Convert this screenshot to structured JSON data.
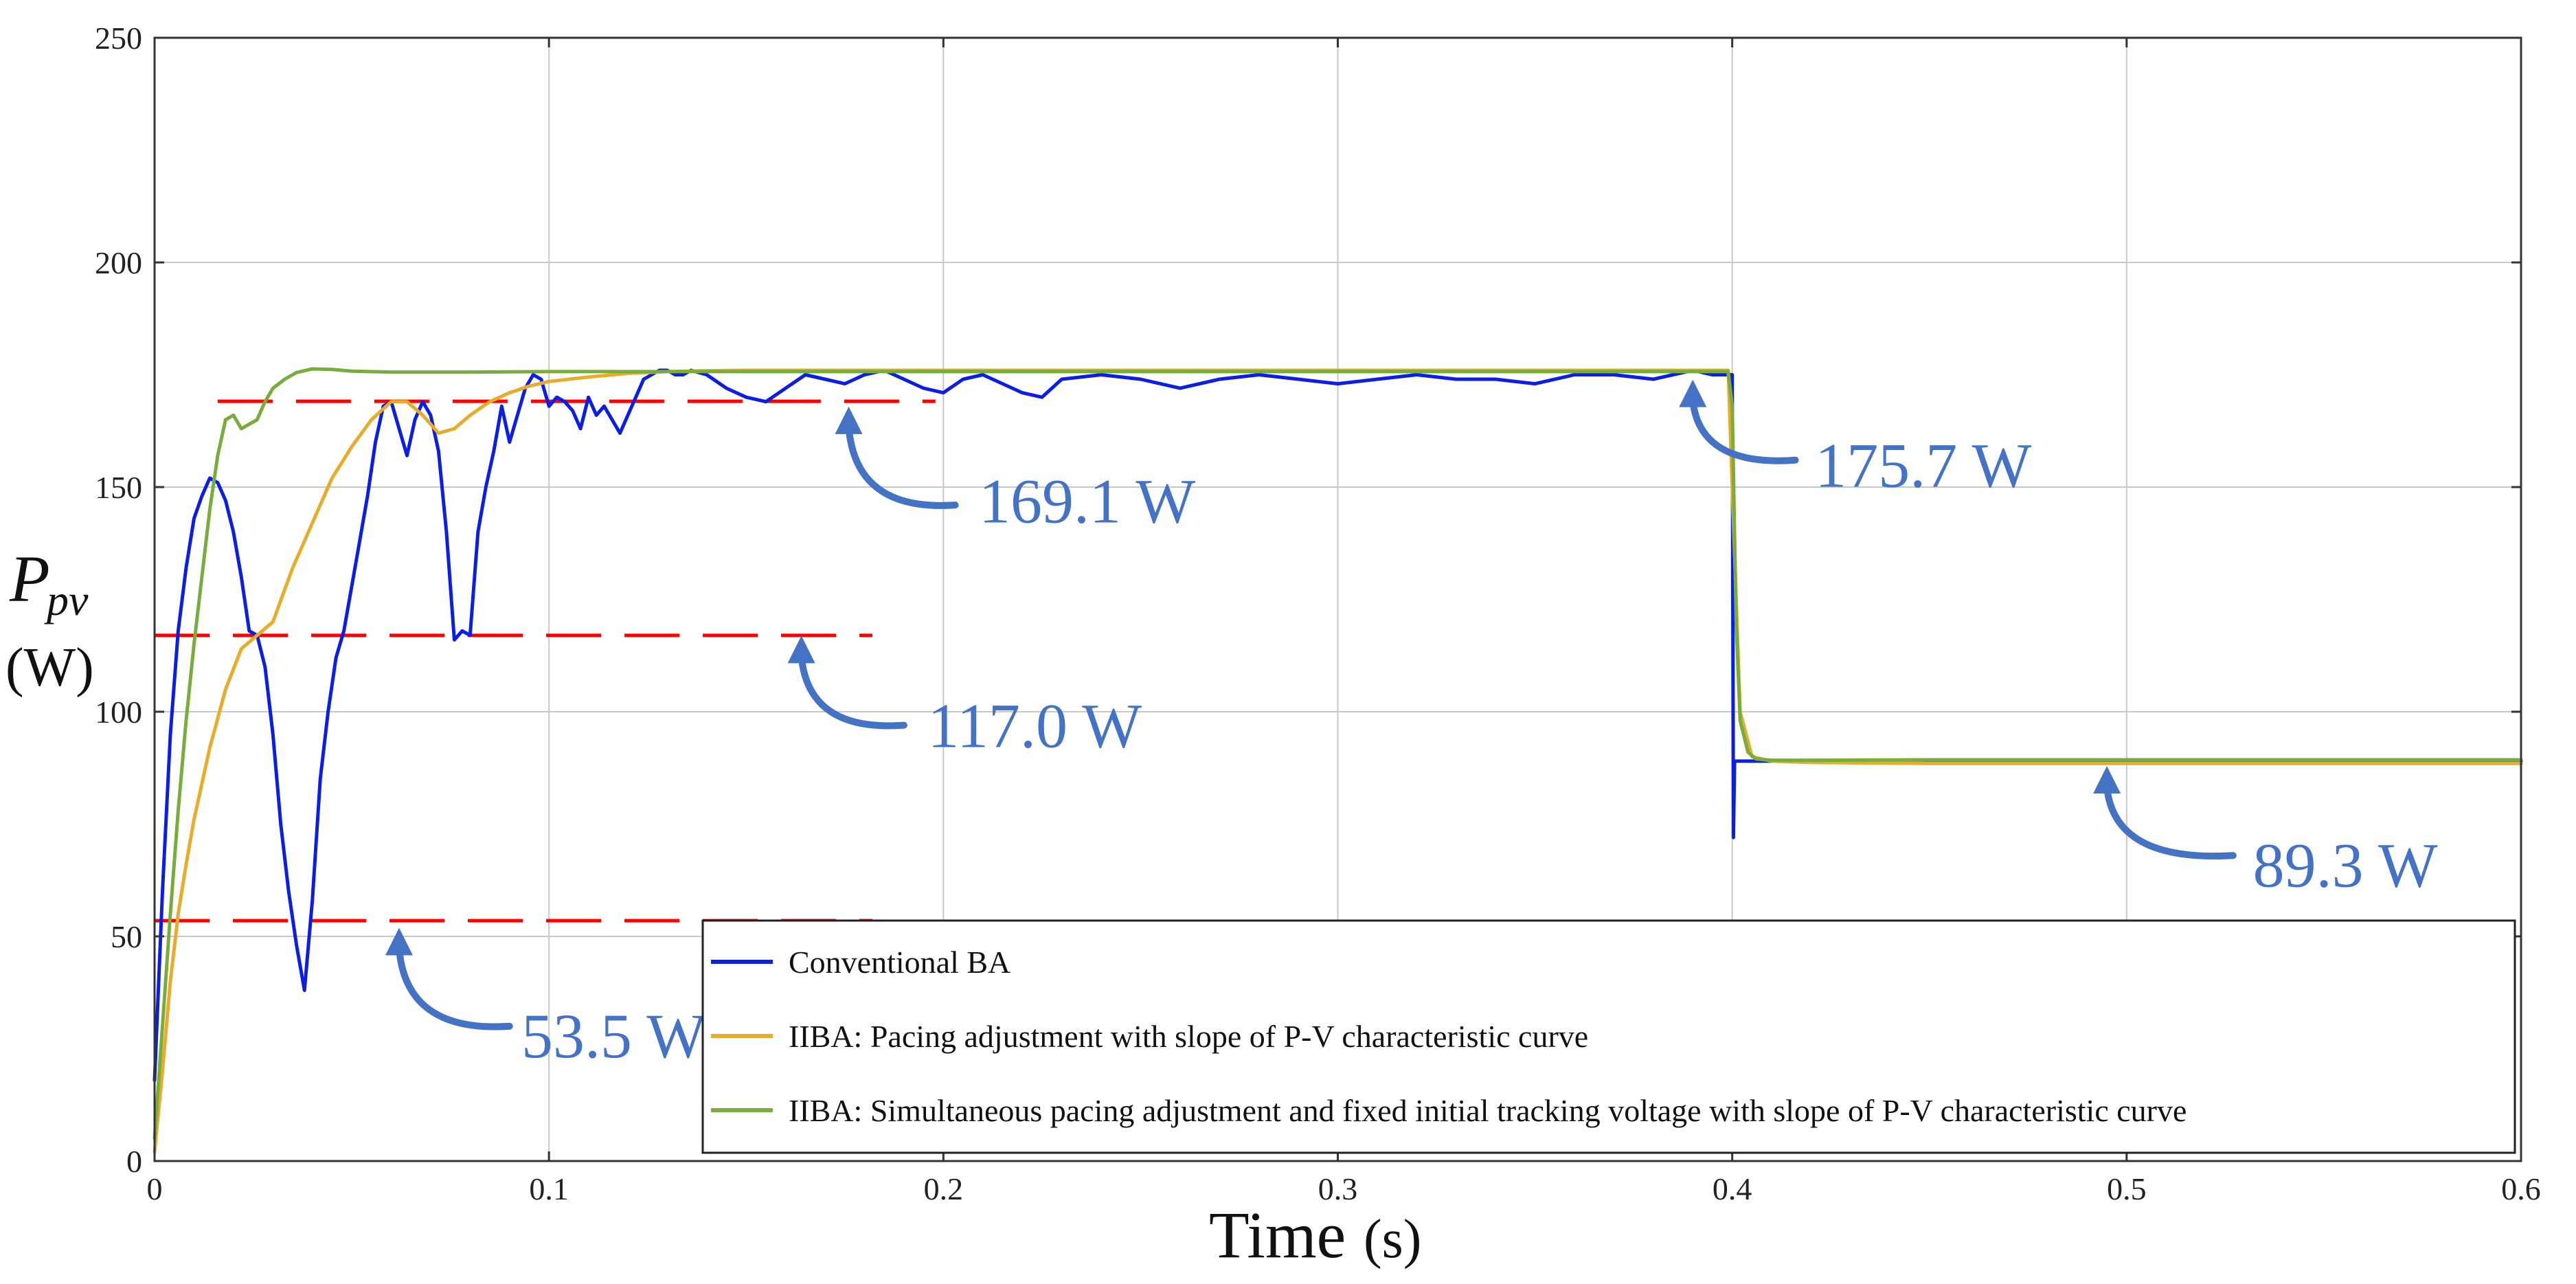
{
  "chart_data": {
    "type": "line",
    "title": "",
    "xlabel": "Time",
    "xlabel_unit": "(s)",
    "ylabel_symbol": "P",
    "ylabel_subscript": "pv",
    "ylabel_unit": "(W)",
    "xlim": [
      0,
      0.6
    ],
    "ylim": [
      0,
      250
    ],
    "xticks": [
      0,
      0.1,
      0.2,
      0.3,
      0.4,
      0.5,
      0.6
    ],
    "xtick_labels": [
      "0",
      "0.1",
      "0.2",
      "0.3",
      "0.4",
      "0.5",
      "0.6"
    ],
    "yticks": [
      0,
      50,
      100,
      150,
      200,
      250
    ],
    "ytick_labels": [
      "0",
      "50",
      "100",
      "150",
      "200",
      "250"
    ],
    "grid": true,
    "legend_position": "bottom-right",
    "series": [
      {
        "name": "Conventional BA",
        "color": "#0a1ee6",
        "x": [
          0,
          0.002,
          0.004,
          0.006,
          0.008,
          0.01,
          0.012,
          0.014,
          0.016,
          0.018,
          0.02,
          0.022,
          0.024,
          0.026,
          0.028,
          0.03,
          0.032,
          0.034,
          0.036,
          0.038,
          0.04,
          0.042,
          0.044,
          0.046,
          0.048,
          0.05,
          0.052,
          0.054,
          0.056,
          0.058,
          0.06,
          0.062,
          0.064,
          0.066,
          0.068,
          0.07,
          0.072,
          0.074,
          0.076,
          0.078,
          0.08,
          0.082,
          0.084,
          0.086,
          0.088,
          0.09,
          0.092,
          0.094,
          0.096,
          0.098,
          0.1,
          0.102,
          0.104,
          0.106,
          0.108,
          0.11,
          0.112,
          0.114,
          0.116,
          0.118,
          0.12,
          0.122,
          0.124,
          0.126,
          0.128,
          0.13,
          0.132,
          0.134,
          0.136,
          0.14,
          0.145,
          0.15,
          0.155,
          0.16,
          0.165,
          0.17,
          0.175,
          0.18,
          0.185,
          0.19,
          0.195,
          0.2,
          0.205,
          0.21,
          0.215,
          0.22,
          0.225,
          0.23,
          0.24,
          0.25,
          0.26,
          0.27,
          0.28,
          0.29,
          0.3,
          0.31,
          0.32,
          0.33,
          0.34,
          0.35,
          0.36,
          0.37,
          0.38,
          0.385,
          0.39,
          0.395,
          0.399,
          0.4,
          0.4003,
          0.4006,
          0.401,
          0.405,
          0.41,
          0.42,
          0.43,
          0.44,
          0.45,
          0.5,
          0.55,
          0.6
        ],
        "y": [
          18,
          60,
          95,
          118,
          132,
          143,
          148,
          152,
          151,
          147,
          140,
          130,
          118,
          117,
          110,
          95,
          75,
          60,
          48,
          38,
          58,
          85,
          100,
          112,
          118,
          128,
          138,
          148,
          160,
          168,
          169,
          163,
          157,
          165,
          169,
          166,
          158,
          140,
          116,
          118,
          117,
          140,
          150,
          158,
          168,
          160,
          166,
          172,
          175,
          174,
          168,
          170,
          169,
          167,
          163,
          170,
          166,
          168,
          165,
          162,
          166,
          170,
          174,
          175,
          176,
          176,
          175,
          175,
          176,
          175,
          172,
          170,
          169,
          172,
          175,
          174,
          173,
          175,
          176,
          174,
          172,
          171,
          174,
          175,
          173,
          171,
          170,
          174,
          175,
          174,
          172,
          174,
          175,
          174,
          173,
          174,
          175,
          174,
          174,
          173,
          175,
          175,
          174,
          175,
          176,
          175,
          175,
          175,
          72,
          89,
          89,
          89,
          89,
          89,
          88.8,
          89,
          89,
          89,
          89,
          89
        ]
      },
      {
        "name": "IIBA: Pacing adjustment with slope of P-V characteristic curve",
        "color": "#e8ac2a",
        "x": [
          0,
          0.002,
          0.004,
          0.006,
          0.008,
          0.01,
          0.014,
          0.018,
          0.022,
          0.026,
          0.03,
          0.035,
          0.04,
          0.045,
          0.05,
          0.055,
          0.06,
          0.064,
          0.068,
          0.072,
          0.076,
          0.08,
          0.085,
          0.09,
          0.095,
          0.1,
          0.11,
          0.12,
          0.13,
          0.14,
          0.15,
          0.2,
          0.25,
          0.3,
          0.35,
          0.399,
          0.4,
          0.402,
          0.405,
          0.41,
          0.42,
          0.45,
          0.5,
          0.55,
          0.6
        ],
        "y": [
          2,
          20,
          40,
          55,
          66,
          76,
          92,
          105,
          114,
          117,
          120,
          132,
          142,
          152,
          159,
          165,
          169,
          169,
          166,
          162,
          163,
          166,
          169,
          171,
          172.5,
          173.5,
          174.5,
          175.3,
          175.7,
          175.9,
          176,
          176,
          176,
          176,
          176,
          176,
          150,
          100,
          90,
          89,
          88.7,
          88.5,
          88.5,
          88.5,
          88.5
        ]
      },
      {
        "name": "IIBA: Simultaneous pacing adjustment and fixed initial tracking voltage with slope of P-V characteristic curve",
        "color": "#78ad3c",
        "x": [
          0,
          0.002,
          0.004,
          0.006,
          0.008,
          0.01,
          0.012,
          0.014,
          0.016,
          0.018,
          0.02,
          0.022,
          0.024,
          0.026,
          0.028,
          0.03,
          0.033,
          0.036,
          0.04,
          0.045,
          0.05,
          0.06,
          0.08,
          0.1,
          0.15,
          0.2,
          0.25,
          0.3,
          0.35,
          0.399,
          0.4,
          0.401,
          0.402,
          0.404,
          0.406,
          0.41,
          0.42,
          0.45,
          0.5,
          0.55,
          0.6
        ],
        "y": [
          5,
          30,
          55,
          78,
          98,
          115,
          130,
          145,
          157,
          165,
          166,
          163,
          164,
          165,
          169,
          172,
          174,
          175.5,
          176.3,
          176.2,
          175.8,
          175.6,
          175.6,
          175.7,
          175.7,
          175.7,
          175.7,
          175.7,
          175.7,
          175.7,
          168,
          120,
          98,
          91,
          89.5,
          89.2,
          89.2,
          89.3,
          89.3,
          89.3,
          89.3
        ]
      }
    ],
    "reference_lines": [
      {
        "y": 169.1,
        "x_range": [
          0.016,
          0.198
        ],
        "color": "#ff0000"
      },
      {
        "y": 117.0,
        "x_range": [
          0,
          0.182
        ],
        "color": "#ff0000"
      },
      {
        "y": 53.5,
        "x_range": [
          0,
          0.182
        ],
        "color": "#ff0000"
      }
    ],
    "annotations": [
      {
        "text": "169.1 W",
        "x": 0.209,
        "y": 147
      },
      {
        "text": "117.0 W",
        "x": 0.196,
        "y": 97
      },
      {
        "text": "53.5 W",
        "x": 0.093,
        "y": 28
      },
      {
        "text": "175.7 W",
        "x": 0.421,
        "y": 155
      },
      {
        "text": "89.3 W",
        "x": 0.532,
        "y": 66
      }
    ],
    "arrows": [
      {
        "from": [
          0.203,
          146
        ],
        "to": [
          0.176,
          167
        ]
      },
      {
        "from": [
          0.19,
          97
        ],
        "to": [
          0.164,
          116
        ]
      },
      {
        "from": [
          0.09,
          30
        ],
        "to": [
          0.062,
          51
        ]
      },
      {
        "from": [
          0.416,
          156
        ],
        "to": [
          0.39,
          173
        ]
      },
      {
        "from": [
          0.527,
          68
        ],
        "to": [
          0.495,
          87
        ]
      }
    ],
    "accent_color": "#4472c4"
  }
}
